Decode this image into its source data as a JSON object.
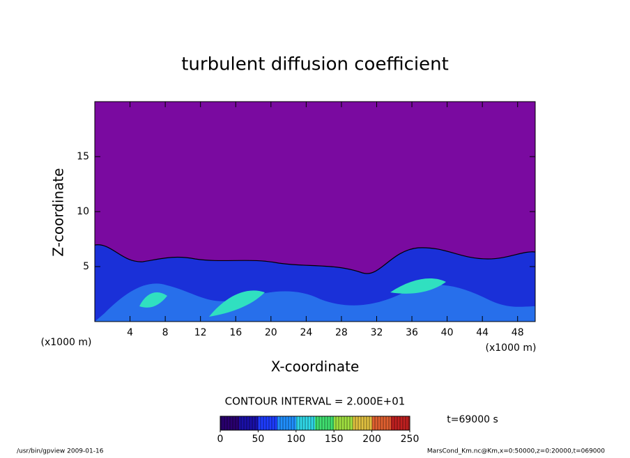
{
  "chart_data": {
    "type": "contour",
    "title": "turbulent diffusion coefficient",
    "x_label": "X-coordinate",
    "y_label": "Z-coordinate",
    "x_unit": "(x1000 m)",
    "xlim": [
      0,
      50
    ],
    "xticks": [
      4,
      8,
      12,
      16,
      20,
      24,
      28,
      32,
      36,
      40,
      44,
      48
    ],
    "ylim": [
      0,
      20
    ],
    "yticks": [
      5,
      10,
      15
    ],
    "contour_interval": "CONTOUR INTERVAL = 2.000E+01",
    "time_label": "t=69000 s",
    "colorbar": {
      "lim": [
        0,
        250
      ],
      "ticks": [
        0,
        50,
        100,
        150,
        200,
        250
      ],
      "colors": [
        "#2a0070",
        "#1a10a8",
        "#1e3cff",
        "#2090ff",
        "#30d8e8",
        "#40e070",
        "#a0e040",
        "#e0c040",
        "#e06030",
        "#c02020"
      ]
    },
    "footer_left": "/usr/bin/gpview   2009-01-16",
    "footer_right": "MarsCond_Km.nc@Km,x=0:50000,z=0:20000,t=069000"
  }
}
